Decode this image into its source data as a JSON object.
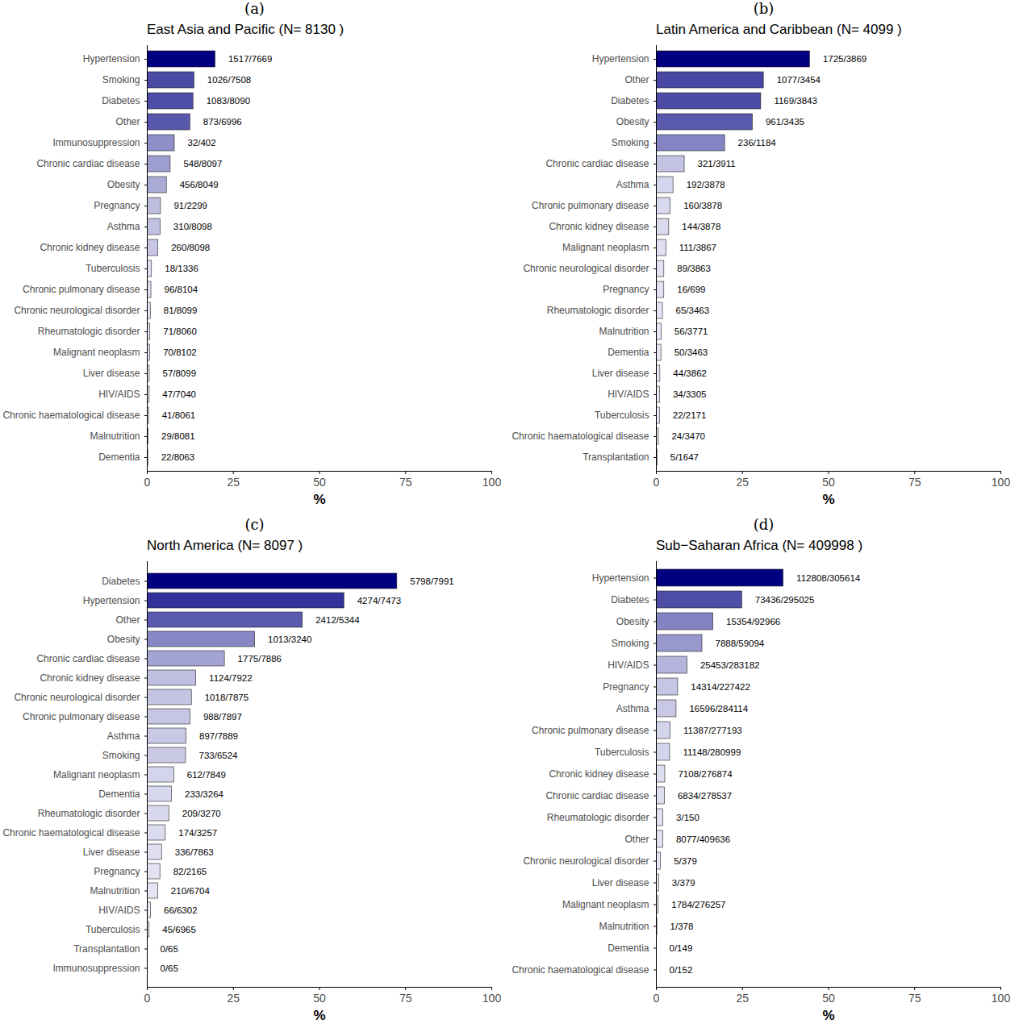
{
  "chart_data": [
    {
      "type": "bar",
      "orientation": "horizontal",
      "data_labels": true,
      "grid": false,
      "panel": "(a)",
      "title": "East Asia and Pacific  (N= 8130 )",
      "x_label": "%",
      "categories": [
        "Hypertension",
        "Smoking",
        "Diabetes",
        "Other",
        "Immunosuppression",
        "Chronic cardiac disease",
        "Obesity",
        "Pregnancy",
        "Asthma",
        "Chronic kidney disease",
        "Tuberculosis",
        "Chronic pulmonary disease",
        "Chronic neurological disorder",
        "Rheumatologic disorder",
        "Malignant neoplasm",
        "Liver disease",
        "HIV/AIDS",
        "Chronic haematological disease",
        "Malnutrition",
        "Dementia"
      ],
      "values": [
        19.78,
        13.67,
        13.39,
        12.48,
        7.96,
        6.77,
        5.67,
        3.96,
        3.83,
        3.21,
        1.35,
        1.18,
        1.0,
        0.88,
        0.86,
        0.7,
        0.67,
        0.51,
        0.36,
        0.27
      ],
      "value_labels": [
        "1517/7669",
        "1026/7508",
        "1083/8090",
        "873/6996",
        "32/402",
        "548/8097",
        "456/8049",
        "91/2299",
        "310/8098",
        "260/8098",
        "18/1336",
        "96/8104",
        "81/8099",
        "71/8060",
        "70/8102",
        "57/8099",
        "47/7040",
        "41/8061",
        "29/8081",
        "22/8063"
      ],
      "xlim": [
        0,
        100
      ],
      "xticks": [
        0,
        25,
        50,
        75,
        100
      ]
    },
    {
      "type": "bar",
      "orientation": "horizontal",
      "data_labels": true,
      "grid": false,
      "panel": "(b)",
      "title": "Latin America and Caribbean  (N= 4099 )",
      "x_label": "%",
      "categories": [
        "Hypertension",
        "Other",
        "Diabetes",
        "Obesity",
        "Smoking",
        "Chronic cardiac disease",
        "Asthma",
        "Chronic pulmonary disease",
        "Chronic kidney disease",
        "Malignant neoplasm",
        "Chronic neurological disorder",
        "Pregnancy",
        "Rheumatologic disorder",
        "Malnutrition",
        "Dementia",
        "Liver disease",
        "HIV/AIDS",
        "Tuberculosis",
        "Chronic haematological disease",
        "Transplantation"
      ],
      "values": [
        44.59,
        31.18,
        30.42,
        27.98,
        19.93,
        8.21,
        4.95,
        4.13,
        3.71,
        2.87,
        2.3,
        2.29,
        1.88,
        1.49,
        1.44,
        1.14,
        1.03,
        1.01,
        0.69,
        0.3
      ],
      "value_labels": [
        "1725/3869",
        "1077/3454",
        "1169/3843",
        "961/3435",
        "236/1184",
        "321/3911",
        "192/3878",
        "160/3878",
        "144/3878",
        "111/3867",
        "89/3863",
        "16/699",
        "65/3463",
        "56/3771",
        "50/3463",
        "44/3862",
        "34/3305",
        "22/2171",
        "24/3470",
        "5/1647"
      ],
      "xlim": [
        0,
        100
      ],
      "xticks": [
        0,
        25,
        50,
        75,
        100
      ]
    },
    {
      "type": "bar",
      "orientation": "horizontal",
      "data_labels": true,
      "grid": false,
      "panel": "(c)",
      "title": "North America  (N= 8097 )",
      "x_label": "%",
      "categories": [
        "Diabetes",
        "Hypertension",
        "Other",
        "Obesity",
        "Chronic cardiac disease",
        "Chronic kidney disease",
        "Chronic neurological disorder",
        "Chronic pulmonary disease",
        "Asthma",
        "Smoking",
        "Malignant neoplasm",
        "Dementia",
        "Rheumatologic disorder",
        "Chronic haematological disease",
        "Liver disease",
        "Pregnancy",
        "Malnutrition",
        "HIV/AIDS",
        "Tuberculosis",
        "Transplantation",
        "Immunosuppression"
      ],
      "values": [
        72.56,
        57.19,
        45.13,
        31.27,
        22.51,
        14.19,
        12.93,
        12.51,
        11.37,
        11.24,
        7.8,
        7.14,
        6.39,
        5.34,
        4.27,
        3.79,
        3.13,
        1.05,
        0.65,
        0,
        0
      ],
      "value_labels": [
        "5798/7991",
        "4274/7473",
        "2412/5344",
        "1013/3240",
        "1775/7886",
        "1124/7922",
        "1018/7875",
        "988/7897",
        "897/7889",
        "733/6524",
        "612/7849",
        "233/3264",
        "209/3270",
        "174/3257",
        "336/7863",
        "82/2165",
        "210/6704",
        "66/6302",
        "45/6965",
        "0/65",
        "0/65"
      ],
      "xlim": [
        0,
        100
      ],
      "xticks": [
        0,
        25,
        50,
        75,
        100
      ]
    },
    {
      "type": "bar",
      "orientation": "horizontal",
      "data_labels": true,
      "grid": false,
      "panel": "(d)",
      "title": "Sub−Saharan Africa  (N= 409998 )",
      "x_label": "%",
      "categories": [
        "Hypertension",
        "Diabetes",
        "Obesity",
        "Smoking",
        "HIV/AIDS",
        "Pregnancy",
        "Asthma",
        "Chronic pulmonary disease",
        "Tuberculosis",
        "Chronic kidney disease",
        "Chronic cardiac disease",
        "Rheumatologic disorder",
        "Other",
        "Chronic neurological disorder",
        "Liver disease",
        "Malignant neoplasm",
        "Malnutrition",
        "Dementia",
        "Chronic haematological disease"
      ],
      "values": [
        36.91,
        24.89,
        16.52,
        13.35,
        8.99,
        6.29,
        5.84,
        4.11,
        3.97,
        2.57,
        2.45,
        2.0,
        1.97,
        1.32,
        0.79,
        0.65,
        0.26,
        0,
        0
      ],
      "value_labels": [
        "112808/305614",
        "73436/295025",
        "15354/92966",
        "7888/59094",
        "25453/283182",
        "14314/227422",
        "16596/284114",
        "11387/277193",
        "11148/280999",
        "7108/276874",
        "6834/278537",
        "3/150",
        "8077/409636",
        "5/379",
        "3/379",
        "1784/276257",
        "1/378",
        "0/149",
        "0/152"
      ],
      "xlim": [
        0,
        100
      ],
      "xticks": [
        0,
        25,
        50,
        75,
        100
      ]
    }
  ]
}
